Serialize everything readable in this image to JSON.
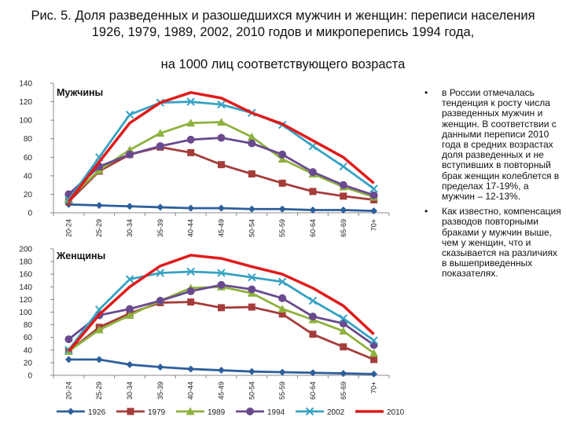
{
  "title": "Рис. 5. Доля разведенных и разошедшихся мужчин и женщин: переписи населения 1926, 1979, 1989, 2002, 2010 годов и микроперепись 1994 года,",
  "subtitle": "на 1000 лиц соответствующего возраста",
  "notes": [
    "в России отмечалась тенденция к росту числа разведенных мужчин и женщин. В соответствии с данными переписи 2010 года в средних возрастах доля разведенных и не вступивших в повторный брак женщин колеблется в пределах 17-19%, а мужчин – 12-13%.",
    "Как известно, компенсация разводов повторными браками у мужчин выше, чем у женщин, что и сказывается на различиях в вышеприведенных показателях."
  ],
  "colors": {
    "1926": "#2E5F9B",
    "1979": "#A43D3A",
    "1989": "#8FB23F",
    "1994": "#6A4A8F",
    "2002": "#36A2C3",
    "2010": "#E01B1B"
  },
  "chart_data": [
    {
      "type": "line",
      "title": "Мужчины",
      "categories": [
        "20-24",
        "25-29",
        "30-34",
        "35-39",
        "40-44",
        "45-49",
        "50-54",
        "55-59",
        "60-64",
        "65-69",
        "70+"
      ],
      "ylim": [
        0,
        140
      ],
      "yticks": [
        0,
        20,
        40,
        60,
        80,
        100,
        120,
        140
      ],
      "grid": false,
      "series": [
        {
          "name": "1926",
          "values": [
            9,
            8,
            7,
            6,
            5,
            5,
            4,
            4,
            3,
            3,
            2
          ]
        },
        {
          "name": "1979",
          "values": [
            12,
            45,
            63,
            71,
            65,
            52,
            42,
            32,
            23,
            18,
            14
          ]
        },
        {
          "name": "1989",
          "values": [
            15,
            46,
            68,
            86,
            97,
            98,
            82,
            58,
            42,
            28,
            17
          ]
        },
        {
          "name": "1994",
          "values": [
            20,
            50,
            63,
            72,
            79,
            81,
            75,
            63,
            44,
            30,
            19
          ]
        },
        {
          "name": "2002",
          "values": [
            14,
            60,
            106,
            119,
            120,
            117,
            108,
            95,
            72,
            50,
            26
          ]
        },
        {
          "name": "2010",
          "values": [
            12,
            55,
            97,
            119,
            130,
            124,
            108,
            96,
            78,
            60,
            32
          ]
        }
      ]
    },
    {
      "type": "line",
      "title": "Женщины",
      "categories": [
        "20-24",
        "25-29",
        "30-34",
        "35-39",
        "40-44",
        "45-49",
        "50-54",
        "55-59",
        "60-64",
        "65-69",
        "70+"
      ],
      "ylim": [
        0,
        200
      ],
      "yticks": [
        0,
        20,
        40,
        60,
        80,
        100,
        120,
        140,
        160,
        180,
        200
      ],
      "grid": false,
      "legend": "bottom",
      "series": [
        {
          "name": "1926",
          "values": [
            25,
            25,
            17,
            13,
            10,
            8,
            6,
            5,
            4,
            3,
            2
          ]
        },
        {
          "name": "1979",
          "values": [
            38,
            76,
            98,
            115,
            116,
            107,
            108,
            97,
            65,
            45,
            25
          ]
        },
        {
          "name": "1989",
          "values": [
            38,
            72,
            95,
            118,
            138,
            140,
            130,
            105,
            88,
            70,
            35
          ]
        },
        {
          "name": "1994",
          "values": [
            57,
            95,
            105,
            118,
            133,
            143,
            136,
            122,
            93,
            82,
            48
          ]
        },
        {
          "name": "2002",
          "values": [
            40,
            104,
            152,
            162,
            164,
            162,
            155,
            148,
            118,
            90,
            55
          ]
        },
        {
          "name": "2010",
          "values": [
            38,
            96,
            140,
            173,
            190,
            185,
            172,
            160,
            138,
            110,
            65
          ]
        }
      ]
    }
  ]
}
